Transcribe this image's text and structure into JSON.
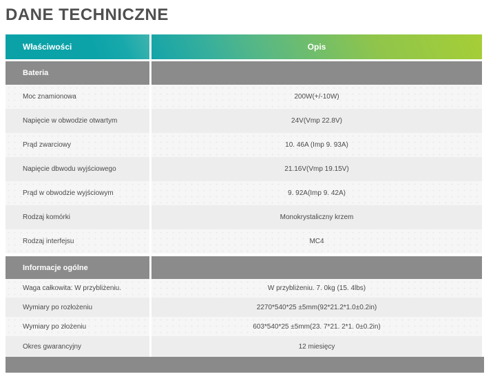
{
  "page": {
    "title": "DANE TECHNICZNE"
  },
  "table": {
    "columns": {
      "property": "Właściwości",
      "description": "Opis"
    },
    "sections": [
      {
        "name": "Bateria",
        "rows": [
          {
            "label": "Moc znamionowa",
            "value": "200W(+/-10W)"
          },
          {
            "label": "Napięcie w obwodzie otwartym",
            "value": "24V(Vmp 22.8V)"
          },
          {
            "label": "Prąd zwarciowy",
            "value": "10. 46A (Imp 9. 93A)"
          },
          {
            "label": "Napięcie dbwodu wyjściowego",
            "value": "21.16V(Vmp 19.15V)"
          },
          {
            "label": "Prąd w obwodzie wyjściowym",
            "value": "9. 92A(Imp 9. 42A)"
          },
          {
            "label": "Rodzaj komórki",
            "value": "Monokrystaliczny krzem"
          },
          {
            "label": "Rodzaj interfejsu",
            "value": "MC4"
          }
        ]
      },
      {
        "name": "Informacje ogólne",
        "rows": [
          {
            "label": "Waga całkowita: W przybliżeniu.",
            "value": "W przybliżeniu. 7. 0kg (15. 4lbs)"
          },
          {
            "label": "Wymiary po rozłożeniu",
            "value": "2270*540*25 ±5mm(92*21.2*1.0±0.2in)"
          },
          {
            "label": "Wymiary po złożeniu",
            "value": "603*540*25 ±5mm(23. 7*21. 2*1. 0±0.2in)"
          },
          {
            "label": "Okres gwarancyjny",
            "value": "12 miesięcy"
          }
        ]
      }
    ]
  },
  "colors": {
    "header_teal": "#0ca3a8",
    "header_green": "#a6ce36",
    "section_gray": "#8b8b8b",
    "footer_gray": "#8a8a8a",
    "row_light": "#f6f6f6",
    "row_dark": "#ededed",
    "text": "#4a4a4a",
    "title_text": "#4f4f4f"
  }
}
